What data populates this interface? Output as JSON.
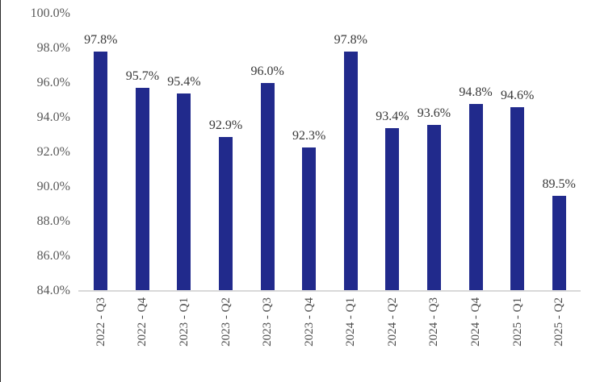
{
  "chart_data": {
    "type": "bar",
    "title": "",
    "xlabel": "",
    "ylabel": "",
    "categories": [
      "2022 - Q3",
      "2022 - Q4",
      "2023 - Q1",
      "2023 - Q2",
      "2023 - Q3",
      "2023 - Q4",
      "2024 - Q1",
      "2024 - Q2",
      "2024 - Q3",
      "2024 - Q4",
      "2025 - Q1",
      "2025 - Q2"
    ],
    "values": [
      97.8,
      95.7,
      95.4,
      92.9,
      96.0,
      92.3,
      97.8,
      93.4,
      93.6,
      94.8,
      94.6,
      89.5
    ],
    "data_labels": [
      "97.8%",
      "95.7%",
      "95.4%",
      "92.9%",
      "96.0%",
      "92.3%",
      "97.8%",
      "93.4%",
      "93.6%",
      "94.8%",
      "94.6%",
      "89.5%"
    ],
    "ylim": [
      84,
      100
    ],
    "yticks": [
      {
        "value": 100,
        "label": "100.0%"
      },
      {
        "value": 98,
        "label": "98.0%"
      },
      {
        "value": 96,
        "label": "96.0%"
      },
      {
        "value": 94,
        "label": "94.0%"
      },
      {
        "value": 92,
        "label": "92.0%"
      },
      {
        "value": 90,
        "label": "90.0%"
      },
      {
        "value": 88,
        "label": "88.0%"
      },
      {
        "value": 86,
        "label": "86.0%"
      },
      {
        "value": 84,
        "label": "84.0%"
      }
    ],
    "grid": false,
    "legend": false,
    "colors": {
      "bar": "#212a8c",
      "axis_line": "#d9d9d9",
      "tick_label": "#595959",
      "data_label": "#383838"
    }
  }
}
